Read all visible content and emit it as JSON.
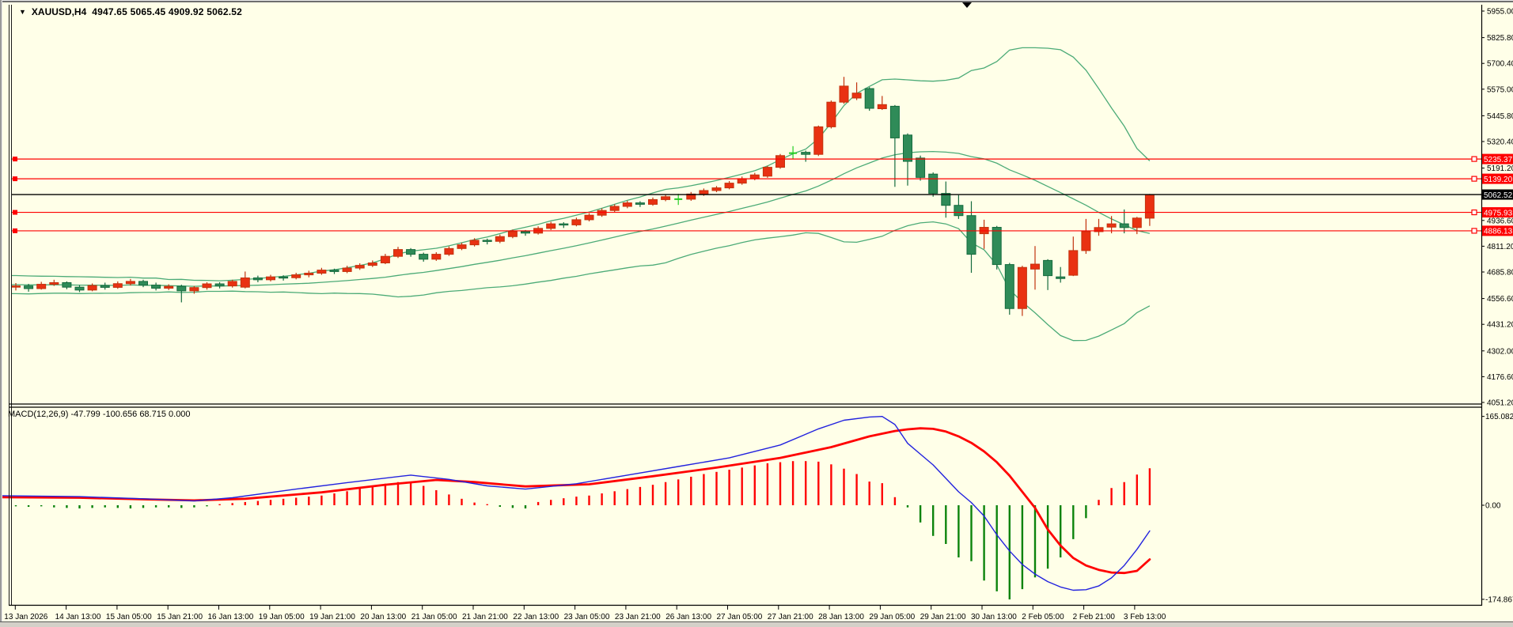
{
  "window": {
    "symbol_period": "XAUUSD,H4",
    "ohlc_text": "4947.65 5065.45 4909.92 5062.52"
  },
  "indicator": {
    "text": "MACD(12,26,9) -47.799 -100.656 68.715 0.000"
  },
  "colors": {
    "background": "#FFFFE8",
    "up_candle": "#E93112",
    "up_border": "#C2330E",
    "down_candle": "#2F8B58",
    "down_border": "#156B3E",
    "doji": "#24CE24",
    "bollinger": "#4CAB77",
    "hline_red": "#FE0000",
    "current_price_line": "#000000",
    "tag_text": "#FFFFFF",
    "macd_line": "#2222DE",
    "signal_line": "#FF0000",
    "hist_pos": "#FF0202",
    "hist_neg": "#0B830B",
    "axis_text": "#000000",
    "frame": "#000000"
  },
  "chart_data": {
    "type": "candlestick",
    "symbol": "XAUUSD",
    "timeframe": "H4",
    "current_bar": {
      "open": 4947.65,
      "high": 5065.45,
      "low": 4909.92,
      "close": 5062.52
    },
    "price_axis": {
      "ylim": [
        4051.2,
        5955.0
      ],
      "labels": [
        "5955.00",
        "5825.80",
        "5700.40",
        "5575.00",
        "5445.80",
        "5320.40",
        "5191.20",
        "4936.60",
        "4811.20",
        "4685.80",
        "4556.60",
        "4431.20",
        "4302.00",
        "4176.60",
        "4051.20"
      ],
      "label_values": [
        5955.0,
        5825.8,
        5700.4,
        5575.0,
        5445.8,
        5320.4,
        5191.2,
        4936.6,
        4811.2,
        4685.8,
        4556.6,
        4431.2,
        4302.0,
        4176.6,
        4051.2
      ]
    },
    "time_axis": {
      "labels": [
        "13 Jan 2026",
        "14 Jan 13:00",
        "15 Jan 05:00",
        "15 Jan 21:00",
        "16 Jan 13:00",
        "19 Jan 05:00",
        "19 Jan 21:00",
        "20 Jan 13:00",
        "21 Jan 05:00",
        "21 Jan 21:00",
        "22 Jan 13:00",
        "23 Jan 05:00",
        "23 Jan 21:00",
        "26 Jan 13:00",
        "27 Jan 05:00",
        "27 Jan 21:00",
        "28 Jan 13:00",
        "29 Jan 05:00",
        "29 Jan 21:00",
        "30 Jan 13:00",
        "2 Feb 05:00",
        "2 Feb 21:00",
        "3 Feb 13:00"
      ]
    },
    "horizontal_lines": [
      {
        "price": 5235.37,
        "label": "5235.37",
        "color": "#FE0000"
      },
      {
        "price": 5139.2,
        "label": "5139.20",
        "color": "#FE0000"
      },
      {
        "price": 4975.93,
        "label": "4975.93",
        "color": "#FE0000"
      },
      {
        "price": 4886.13,
        "label": "4886.13",
        "color": "#FE0000"
      }
    ],
    "current_price_line": {
      "price": 5062.52,
      "label": "5062.52",
      "color": "#000000"
    },
    "bollinger": {
      "period": 20,
      "deviation": 2,
      "prehistory_closes": [
        4640,
        4598,
        4652,
        4605,
        4660,
        4612,
        4648,
        4590,
        4635,
        4602,
        4642,
        4615
      ]
    },
    "candles": [
      [
        4612,
        4632,
        4596,
        4618
      ],
      [
        4618,
        4628,
        4590,
        4605
      ],
      [
        4605,
        4638,
        4600,
        4626
      ],
      [
        4626,
        4648,
        4618,
        4634
      ],
      [
        4634,
        4640,
        4602,
        4612
      ],
      [
        4612,
        4622,
        4588,
        4598
      ],
      [
        4598,
        4630,
        4592,
        4620
      ],
      [
        4620,
        4634,
        4600,
        4611
      ],
      [
        4611,
        4640,
        4604,
        4629
      ],
      [
        4629,
        4652,
        4620,
        4640
      ],
      [
        4640,
        4648,
        4612,
        4622
      ],
      [
        4622,
        4634,
        4596,
        4607
      ],
      [
        4607,
        4626,
        4598,
        4616
      ],
      [
        4616,
        4624,
        4538,
        4594
      ],
      [
        4594,
        4618,
        4580,
        4610
      ],
      [
        4610,
        4636,
        4600,
        4628
      ],
      [
        4628,
        4636,
        4606,
        4618
      ],
      [
        4618,
        4648,
        4610,
        4640
      ],
      [
        4612,
        4688,
        4606,
        4657
      ],
      [
        4657,
        4668,
        4636,
        4648
      ],
      [
        4648,
        4672,
        4640,
        4662
      ],
      [
        4662,
        4670,
        4644,
        4658
      ],
      [
        4658,
        4682,
        4650,
        4672
      ],
      [
        4672,
        4692,
        4660,
        4680
      ],
      [
        4680,
        4706,
        4672,
        4695
      ],
      [
        4695,
        4702,
        4676,
        4688
      ],
      [
        4688,
        4716,
        4680,
        4705
      ],
      [
        4705,
        4728,
        4696,
        4718
      ],
      [
        4718,
        4742,
        4710,
        4730
      ],
      [
        4730,
        4774,
        4724,
        4762
      ],
      [
        4762,
        4808,
        4754,
        4795
      ],
      [
        4795,
        4802,
        4760,
        4772
      ],
      [
        4772,
        4780,
        4736,
        4748
      ],
      [
        4748,
        4782,
        4740,
        4772
      ],
      [
        4772,
        4810,
        4764,
        4800
      ],
      [
        4800,
        4828,
        4792,
        4818
      ],
      [
        4818,
        4850,
        4810,
        4840
      ],
      [
        4840,
        4848,
        4820,
        4835
      ],
      [
        4835,
        4868,
        4826,
        4858
      ],
      [
        4858,
        4892,
        4850,
        4882
      ],
      [
        4882,
        4890,
        4862,
        4875
      ],
      [
        4875,
        4908,
        4868,
        4898
      ],
      [
        4898,
        4930,
        4890,
        4920
      ],
      [
        4920,
        4928,
        4900,
        4915
      ],
      [
        4915,
        4950,
        4908,
        4940
      ],
      [
        4940,
        4972,
        4932,
        4962
      ],
      [
        4962,
        4995,
        4954,
        4985
      ],
      [
        4985,
        5015,
        4976,
        5005
      ],
      [
        5005,
        5032,
        4996,
        5022
      ],
      [
        5022,
        5030,
        5002,
        5015
      ],
      [
        5015,
        5048,
        5008,
        5038
      ],
      [
        5038,
        5062,
        5030,
        5052
      ],
      [
        5040,
        5066,
        5012,
        5040
      ],
      [
        5040,
        5075,
        5032,
        5065
      ],
      [
        5065,
        5092,
        5056,
        5082
      ],
      [
        5082,
        5104,
        5074,
        5095
      ],
      [
        5095,
        5128,
        5088,
        5118
      ],
      [
        5118,
        5150,
        5110,
        5140
      ],
      [
        5140,
        5168,
        5132,
        5158
      ],
      [
        5152,
        5202,
        5144,
        5195
      ],
      [
        5195,
        5260,
        5188,
        5252
      ],
      [
        5264,
        5298,
        5236,
        5264
      ],
      [
        5268,
        5276,
        5222,
        5258
      ],
      [
        5258,
        5398,
        5250,
        5392
      ],
      [
        5392,
        5520,
        5384,
        5512
      ],
      [
        5512,
        5635,
        5504,
        5590
      ],
      [
        5532,
        5608,
        5522,
        5556
      ],
      [
        5578,
        5585,
        5470,
        5482
      ],
      [
        5480,
        5542,
        5474,
        5500
      ],
      [
        5492,
        5498,
        5100,
        5338
      ],
      [
        5352,
        5360,
        5106,
        5224
      ],
      [
        5240,
        5252,
        5130,
        5146
      ],
      [
        5162,
        5170,
        5052,
        5068
      ],
      [
        5068,
        5126,
        4950,
        5010
      ],
      [
        5010,
        5060,
        4944,
        4960
      ],
      [
        4960,
        5030,
        4682,
        4772
      ],
      [
        4872,
        4940,
        4798,
        4903
      ],
      [
        4903,
        4910,
        4698,
        4722
      ],
      [
        4722,
        4730,
        4478,
        4508
      ],
      [
        4508,
        4716,
        4472,
        4708
      ],
      [
        4700,
        4812,
        4600,
        4724
      ],
      [
        4742,
        4748,
        4598,
        4668
      ],
      [
        4662,
        4710,
        4634,
        4654
      ],
      [
        4670,
        4858,
        4666,
        4790
      ],
      [
        4790,
        4944,
        4774,
        4882
      ],
      [
        4882,
        4944,
        4862,
        4902
      ],
      [
        4904,
        4958,
        4874,
        4920
      ],
      [
        4920,
        4990,
        4874,
        4902
      ],
      [
        4902,
        4954,
        4870,
        4948
      ],
      [
        4947.65,
        5065.45,
        4909.92,
        5062.52
      ]
    ],
    "macd_panel": {
      "label": "MACD(12,26,9)",
      "values": {
        "macd": -47.799,
        "signal": -100.656,
        "histogram": 68.715,
        "zero": 0.0
      },
      "axis_labels": [
        "165.082",
        "0.00",
        "-174.867"
      ],
      "axis_values": [
        165.082,
        0.0,
        -174.867
      ],
      "ylim": [
        -174.867,
        165.082
      ],
      "histogram": [
        -2,
        -3,
        -2,
        -4,
        -5,
        -6,
        -5,
        -4,
        -5,
        -6,
        -5,
        -4,
        -4,
        -5,
        -4,
        -2,
        2,
        4,
        6,
        8,
        10,
        12,
        14,
        16,
        18,
        22,
        26,
        31,
        36,
        40,
        43,
        44,
        36,
        28,
        20,
        12,
        5,
        2,
        -3,
        -5,
        -6,
        6,
        10,
        13,
        16,
        18,
        22,
        26,
        30,
        34,
        38,
        43,
        48,
        53,
        58,
        62,
        66,
        70,
        74,
        78,
        80,
        82,
        82,
        81,
        76,
        68,
        58,
        44,
        41,
        15,
        -4,
        -32,
        -57,
        -72,
        -97,
        -104,
        -140,
        -160,
        -175,
        -156,
        -134,
        -118,
        -97,
        -63,
        -24,
        10,
        32,
        43,
        57,
        68.715
      ],
      "macd_line": [
        [
          -2,
          18
        ],
        [
          5,
          16
        ],
        [
          10,
          12
        ],
        [
          14,
          8
        ],
        [
          17,
          14
        ],
        [
          22,
          30
        ],
        [
          26,
          42
        ],
        [
          31,
          56
        ],
        [
          34,
          48
        ],
        [
          37,
          36
        ],
        [
          40,
          30
        ],
        [
          44,
          40
        ],
        [
          48,
          56
        ],
        [
          52,
          72
        ],
        [
          56,
          88
        ],
        [
          60,
          112
        ],
        [
          63,
          142
        ],
        [
          65,
          158
        ],
        [
          67,
          164
        ],
        [
          68,
          165.082
        ],
        [
          69,
          150
        ],
        [
          70,
          115
        ],
        [
          71,
          95
        ],
        [
          72,
          75
        ],
        [
          73,
          50
        ],
        [
          74,
          25
        ],
        [
          75,
          5
        ],
        [
          76,
          -20
        ],
        [
          77,
          -55
        ],
        [
          78,
          -85
        ],
        [
          79,
          -110
        ],
        [
          80,
          -128
        ],
        [
          81,
          -142
        ],
        [
          82,
          -152
        ],
        [
          83,
          -158
        ],
        [
          84,
          -157
        ],
        [
          85,
          -150
        ],
        [
          86,
          -135
        ],
        [
          87,
          -112
        ],
        [
          88,
          -82
        ],
        [
          89,
          -47.799
        ]
      ],
      "signal_line": [
        [
          -2,
          15
        ],
        [
          5,
          14
        ],
        [
          10,
          11
        ],
        [
          14,
          9
        ],
        [
          18,
          12
        ],
        [
          24,
          24
        ],
        [
          29,
          38
        ],
        [
          33,
          47
        ],
        [
          36,
          43
        ],
        [
          40,
          35
        ],
        [
          45,
          39
        ],
        [
          50,
          54
        ],
        [
          55,
          70
        ],
        [
          60,
          88
        ],
        [
          64,
          108
        ],
        [
          67,
          128
        ],
        [
          69,
          138
        ],
        [
          70,
          141
        ],
        [
          71,
          143
        ],
        [
          72,
          142
        ],
        [
          73,
          137
        ],
        [
          74,
          128
        ],
        [
          75,
          116
        ],
        [
          76,
          100
        ],
        [
          77,
          80
        ],
        [
          78,
          55
        ],
        [
          79,
          25
        ],
        [
          80,
          -5
        ],
        [
          81,
          -45
        ],
        [
          82,
          -75
        ],
        [
          83,
          -98
        ],
        [
          84,
          -112
        ],
        [
          85,
          -120
        ],
        [
          86,
          -125
        ],
        [
          87,
          -126
        ],
        [
          88,
          -122
        ],
        [
          89,
          -100.656
        ]
      ]
    }
  }
}
